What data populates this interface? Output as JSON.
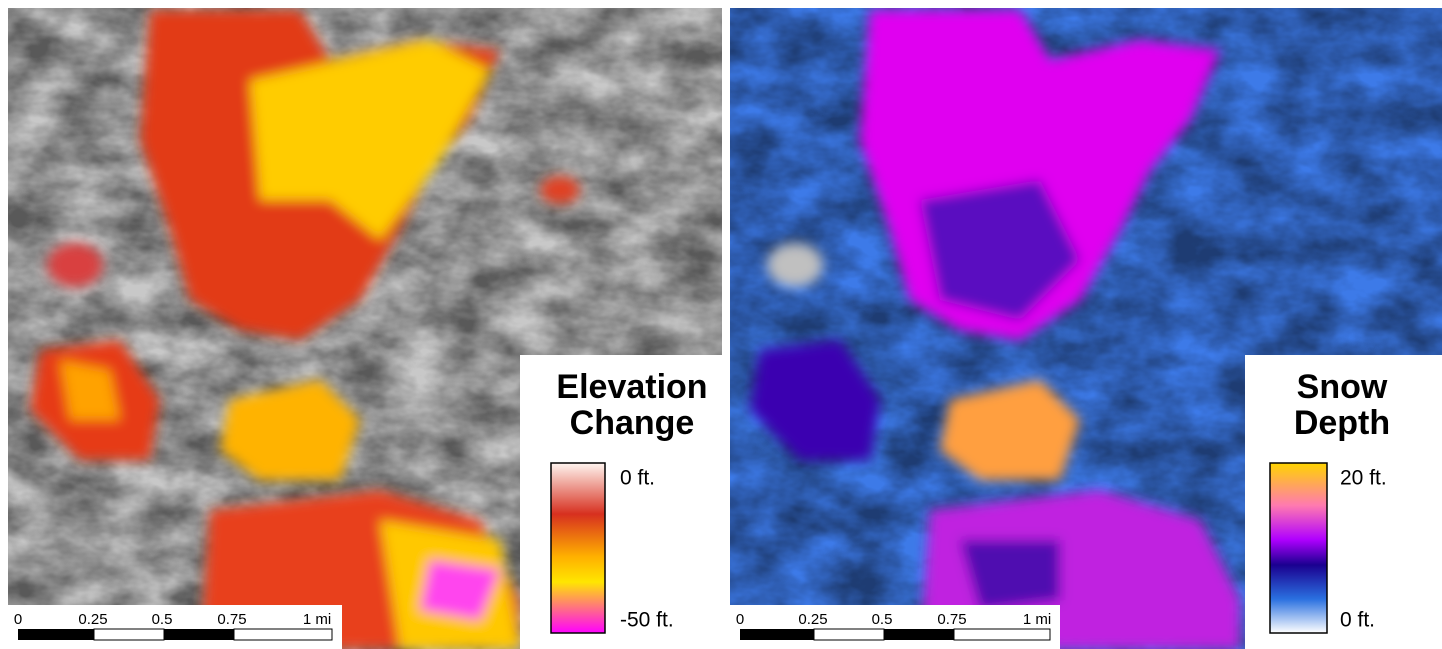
{
  "panels": [
    {
      "legend": {
        "title": [
          "Elevation",
          "Change"
        ],
        "top_label": "0 ft.",
        "bottom_label": "-50 ft."
      },
      "scale_bar": {
        "labels": [
          "0",
          "0.25",
          "0.5",
          "0.75",
          "1 mi"
        ]
      }
    },
    {
      "legend": {
        "title": [
          "Snow",
          "Depth"
        ],
        "top_label": "20 ft.",
        "bottom_label": "0 ft."
      },
      "scale_bar": {
        "labels": [
          "0",
          "0.25",
          "0.5",
          "0.75",
          "1 mi"
        ]
      }
    }
  ]
}
